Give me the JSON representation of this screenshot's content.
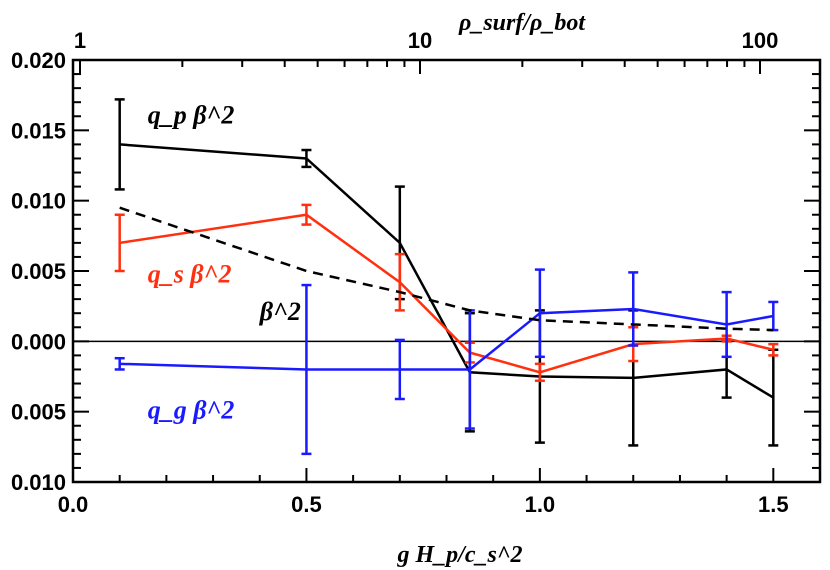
{
  "chart_data": {
    "type": "line",
    "title": "",
    "xlabel": "g H_p/c_s^2",
    "top_xlabel": "ρ_surf/ρ_bot",
    "ylabel": "",
    "xlim": [
      0.0,
      1.6
    ],
    "ylim": [
      -0.01,
      0.02
    ],
    "x_ticks": [
      {
        "value": 0.0,
        "label": "0.0"
      },
      {
        "value": 0.5,
        "label": "0.5"
      },
      {
        "value": 1.0,
        "label": "1.0"
      },
      {
        "value": 1.5,
        "label": "1.5"
      }
    ],
    "y_ticks": [
      {
        "value": 0.02,
        "label": "0.020"
      },
      {
        "value": 0.015,
        "label": "0.015"
      },
      {
        "value": 0.01,
        "label": "0.010"
      },
      {
        "value": 0.005,
        "label": "0.005"
      },
      {
        "value": 0.0,
        "label": "0.000"
      },
      {
        "value": -0.005,
        "label": "0.005"
      },
      {
        "value": -0.01,
        "label": "0.010"
      }
    ],
    "top_axis": {
      "scale": "log",
      "range": [
        1,
        100
      ],
      "ticks": [
        {
          "value": 1,
          "label": "1"
        },
        {
          "value": 10,
          "label": "10"
        },
        {
          "value": 100,
          "label": "100"
        }
      ]
    },
    "zero_line": true,
    "grid": false,
    "series": [
      {
        "name": "q_p β^2",
        "color": "#000000",
        "dash": "solid",
        "x": [
          0.1,
          0.5,
          0.7,
          0.85,
          1.0,
          1.2,
          1.4,
          1.5
        ],
        "y": [
          0.014,
          0.013,
          0.007,
          -0.0022,
          -0.0025,
          -0.0026,
          -0.002,
          -0.004
        ],
        "err": [
          0.0032,
          0.0006,
          0.004,
          0.0042,
          0.0047,
          0.0048,
          0.002,
          0.0034
        ],
        "label_pos": {
          "x": 0.16,
          "y": 0.0155
        }
      },
      {
        "name": "q_s β^2",
        "color": "#ff3010",
        "dash": "solid",
        "x": [
          0.1,
          0.5,
          0.7,
          0.85,
          1.0,
          1.2,
          1.4,
          1.5
        ],
        "y": [
          0.007,
          0.009,
          0.0042,
          -0.0008,
          -0.0022,
          -0.0002,
          0.0002,
          -0.0006
        ],
        "err": [
          0.002,
          0.0007,
          0.002,
          0.0007,
          0.0006,
          0.0012,
          0.0002,
          0.0004
        ],
        "label_pos": {
          "x": 0.16,
          "y": 0.0042
        }
      },
      {
        "name": "q_g β^2",
        "color": "#1a1aff",
        "dash": "solid",
        "x": [
          0.1,
          0.5,
          0.7,
          0.85,
          1.0,
          1.2,
          1.4,
          1.5
        ],
        "y": [
          -0.0016,
          -0.002,
          -0.002,
          -0.002,
          0.002,
          0.0023,
          0.0012,
          0.0018
        ],
        "err": [
          0.0004,
          0.006,
          0.0021,
          0.0042,
          0.0031,
          0.0026,
          0.0023,
          0.001
        ],
        "label_pos": {
          "x": 0.16,
          "y": -0.0055
        }
      },
      {
        "name": "β^2",
        "color": "#000000",
        "dash": "dashed",
        "x": [
          0.1,
          0.5,
          0.7,
          0.85,
          1.0,
          1.2,
          1.4,
          1.5
        ],
        "y": [
          0.0095,
          0.005,
          0.0035,
          0.0022,
          0.0015,
          0.0012,
          0.0009,
          0.0008
        ],
        "err": [
          0,
          0,
          0,
          0,
          0,
          0,
          0,
          0
        ],
        "label_pos": {
          "x": 0.4,
          "y": 0.0015
        }
      }
    ]
  }
}
